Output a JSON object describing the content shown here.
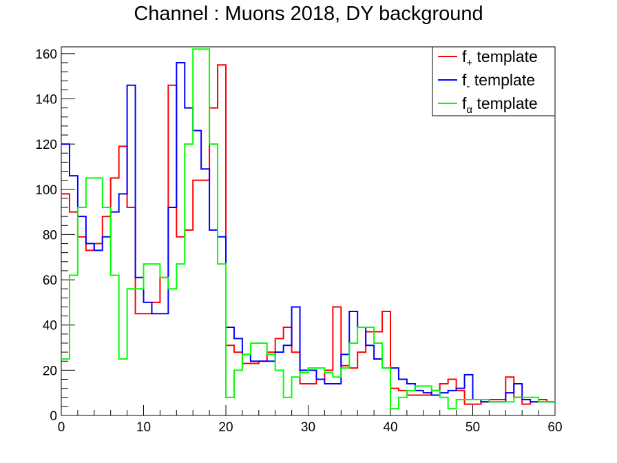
{
  "chart_data": {
    "type": "line",
    "title": "Channel : Muons 2018, DY background",
    "xlabel": "",
    "ylabel": "",
    "xlim": [
      0,
      60
    ],
    "ylim": [
      0,
      163
    ],
    "x_ticks": [
      0,
      10,
      20,
      30,
      40,
      50,
      60
    ],
    "y_ticks": [
      0,
      20,
      40,
      60,
      80,
      100,
      120,
      140,
      160
    ],
    "bin_width": 1,
    "grid": false,
    "legend_position": "top-right",
    "series": [
      {
        "name": "f+ template",
        "legend_base": "f",
        "legend_sub": "+",
        "legend_suffix": " template",
        "color": "#ff0000",
        "values": [
          98,
          90,
          79,
          73,
          76,
          88,
          105,
          119,
          92,
          45,
          45,
          50,
          61,
          146,
          79,
          82,
          104,
          104,
          136,
          155,
          31,
          28,
          23,
          23,
          24,
          28,
          34,
          39,
          28,
          14,
          14,
          16,
          20,
          48,
          22,
          21,
          28,
          37,
          37,
          46,
          12,
          11,
          9,
          9,
          9,
          11,
          14,
          16,
          11,
          5,
          5,
          6,
          7,
          7,
          17,
          8,
          5,
          6,
          7,
          6
        ]
      },
      {
        "name": "f- template",
        "legend_base": "f",
        "legend_sub": "-",
        "legend_suffix": " template",
        "color": "#0000ff",
        "values": [
          120,
          106,
          88,
          76,
          73,
          79,
          90,
          98,
          146,
          61,
          50,
          45,
          45,
          92,
          156,
          136,
          126,
          109,
          82,
          79,
          39,
          34,
          27,
          24,
          24,
          24,
          28,
          31,
          48,
          20,
          20,
          16,
          14,
          14,
          27,
          46,
          39,
          31,
          25,
          21,
          21,
          16,
          14,
          11,
          10,
          9,
          10,
          11,
          12,
          18,
          7,
          6,
          6,
          6,
          10,
          14,
          7,
          6,
          6,
          6
        ]
      },
      {
        "name": "fα template",
        "legend_base": "f",
        "legend_sub": "α",
        "legend_suffix": " template",
        "color": "#00ff00",
        "values": [
          25,
          62,
          92,
          105,
          105,
          92,
          62,
          25,
          56,
          56,
          67,
          67,
          61,
          56,
          67,
          120,
          162,
          162,
          120,
          67,
          8,
          20,
          27,
          32,
          32,
          27,
          20,
          8,
          17,
          19,
          21,
          21,
          19,
          17,
          21,
          32,
          39,
          39,
          32,
          21,
          3,
          8,
          11,
          13,
          13,
          11,
          8,
          3,
          7,
          7,
          7,
          7,
          6,
          6,
          6,
          8,
          8,
          8,
          6,
          6
        ]
      }
    ]
  }
}
